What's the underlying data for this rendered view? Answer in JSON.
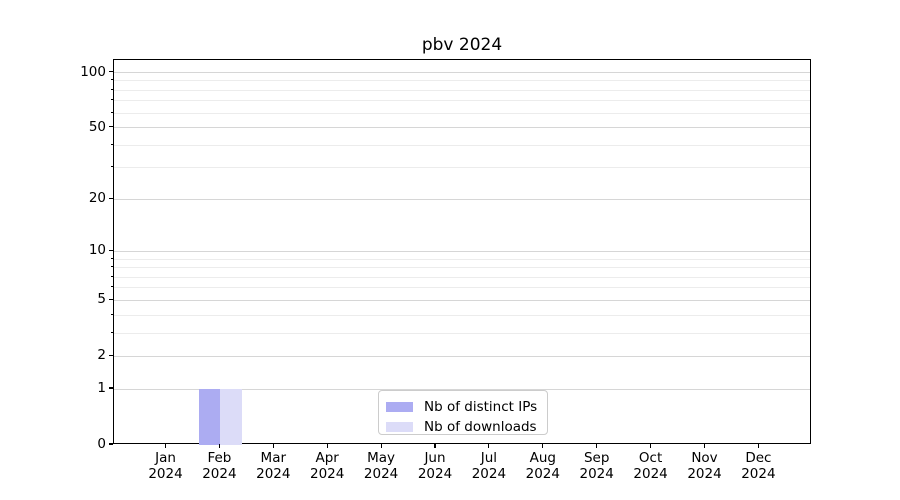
{
  "chart_data": {
    "type": "bar",
    "title": "pbv 2024",
    "categories": [
      "Jan 2024",
      "Feb 2024",
      "Mar 2024",
      "Apr 2024",
      "May 2024",
      "Jun 2024",
      "Jul 2024",
      "Aug 2024",
      "Sep 2024",
      "Oct 2024",
      "Nov 2024",
      "Dec 2024"
    ],
    "series": [
      {
        "name": "Nb of distinct IPs",
        "color": "#acacf2",
        "values": [
          0,
          1,
          0,
          0,
          0,
          0,
          0,
          0,
          0,
          0,
          0,
          0
        ]
      },
      {
        "name": "Nb of downloads",
        "color": "#dcdcf8",
        "values": [
          0,
          1,
          0,
          0,
          0,
          0,
          0,
          0,
          0,
          0,
          0,
          0
        ]
      }
    ],
    "xlabel": "",
    "ylabel": "",
    "y_scale": "log1p",
    "ylim": [
      0,
      117
    ],
    "y_major_ticks": [
      0,
      1,
      2,
      5,
      10,
      20,
      50,
      100
    ],
    "y_minor_ticks": [
      3,
      4,
      6,
      7,
      8,
      9,
      30,
      40,
      60,
      70,
      80,
      90
    ],
    "grid": {
      "horizontal": true,
      "vertical": false,
      "minor": true
    },
    "legend_position": "lower center",
    "colors": {
      "major_grid": "#d6d6d6",
      "minor_grid": "#ececec",
      "spine": "#000000",
      "text": "#000000",
      "legend_border": "#cccccc",
      "background": "#ffffff"
    }
  }
}
